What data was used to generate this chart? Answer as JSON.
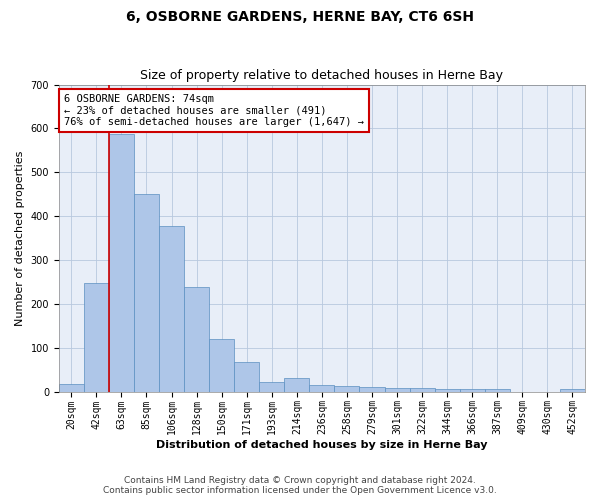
{
  "title": "6, OSBORNE GARDENS, HERNE BAY, CT6 6SH",
  "subtitle": "Size of property relative to detached houses in Herne Bay",
  "xlabel": "Distribution of detached houses by size in Herne Bay",
  "ylabel": "Number of detached properties",
  "categories": [
    "20sqm",
    "42sqm",
    "63sqm",
    "85sqm",
    "106sqm",
    "128sqm",
    "150sqm",
    "171sqm",
    "193sqm",
    "214sqm",
    "236sqm",
    "258sqm",
    "279sqm",
    "301sqm",
    "322sqm",
    "344sqm",
    "366sqm",
    "387sqm",
    "409sqm",
    "430sqm",
    "452sqm"
  ],
  "values": [
    18,
    248,
    588,
    450,
    378,
    238,
    120,
    68,
    22,
    30,
    14,
    12,
    10,
    8,
    8,
    5,
    5,
    5,
    0,
    0,
    6
  ],
  "bar_color": "#aec6e8",
  "bar_edge_color": "#5a8fc0",
  "property_line_idx": 1.5,
  "property_line_color": "#cc0000",
  "annotation_text": "6 OSBORNE GARDENS: 74sqm\n← 23% of detached houses are smaller (491)\n76% of semi-detached houses are larger (1,647) →",
  "annotation_box_facecolor": "#ffffff",
  "annotation_box_edgecolor": "#cc0000",
  "ylim": [
    0,
    700
  ],
  "yticks": [
    0,
    100,
    200,
    300,
    400,
    500,
    600,
    700
  ],
  "background_color": "#e8eef8",
  "footer_text": "Contains HM Land Registry data © Crown copyright and database right 2024.\nContains public sector information licensed under the Open Government Licence v3.0.",
  "title_fontsize": 10,
  "subtitle_fontsize": 9,
  "xlabel_fontsize": 8,
  "ylabel_fontsize": 8,
  "tick_fontsize": 7,
  "annotation_fontsize": 7.5,
  "footer_fontsize": 6.5
}
